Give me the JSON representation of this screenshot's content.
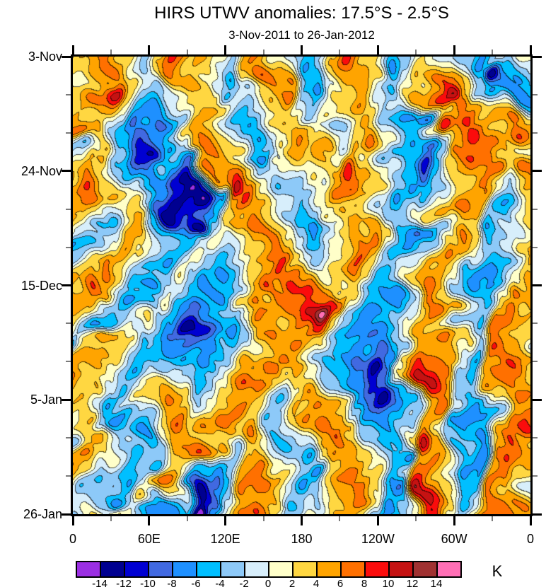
{
  "title": "HIRS UTWV anomalies: 17.5°S - 2.5°S",
  "subtitle": "3-Nov-2011 to 26-Jan-2012",
  "unit": "K",
  "chart_data": {
    "type": "heatmap",
    "title": "HIRS UTWV anomalies: 17.5°S - 2.5°S",
    "subtitle": "3-Nov-2011 to 26-Jan-2012",
    "value_units": "K",
    "grid": "off",
    "x_axis": {
      "labels": [
        "0",
        "60E",
        "120E",
        "180",
        "120W",
        "60W",
        "0"
      ],
      "range_degrees": [
        0,
        360
      ],
      "minor_ticks_between_major": 1
    },
    "y_axis": {
      "labels": [
        "3-Nov",
        "24-Nov",
        "15-Dec",
        "5-Jan",
        "26-Jan"
      ],
      "range": [
        "3-Nov-2011",
        "26-Jan-2012"
      ],
      "minor_ticks_between_major": 2
    },
    "colorbar": {
      "unit": "K",
      "position": "bottom",
      "tick_labels": [
        "-14",
        "-12",
        "-10",
        "-8",
        "-6",
        "-4",
        "-2",
        "0",
        "2",
        "4",
        "6",
        "8",
        "10",
        "12",
        "14"
      ],
      "level_step": 2,
      "colors": [
        "#9B2FE3",
        "#000090",
        "#0000D2",
        "#4169E1",
        "#1E90FF",
        "#00BFFF",
        "#8DC9F8",
        "#D7EEFB",
        "#FFFFC9",
        "#FFD741",
        "#FFA400",
        "#FF7000",
        "#FB0C0C",
        "#C51212",
        "#A03232",
        "#FF6FB5"
      ]
    },
    "field": {
      "description": "anomaly values in K on a coarse lon-time grid, estimated from filled contours",
      "cols": 27,
      "rows": 25,
      "values": [
        [
          2,
          4,
          7,
          3,
          -2,
          3,
          9,
          5,
          1,
          -3,
          5,
          6,
          1,
          -4,
          -2,
          3,
          8,
          2,
          -5,
          -1,
          2,
          1,
          -2,
          -6,
          -3,
          -2,
          1
        ],
        [
          1,
          2,
          5,
          1,
          -3,
          2,
          7,
          3,
          -1,
          -5,
          2,
          7,
          3,
          -5,
          -7,
          1,
          6,
          4,
          -6,
          -3,
          3,
          7,
          2,
          -4,
          -13,
          -6,
          -2
        ],
        [
          3,
          6,
          10,
          4,
          -1,
          -4,
          2,
          5,
          2,
          -4,
          -2,
          4,
          6,
          -2,
          -5,
          3,
          4,
          -2,
          -4,
          2,
          5,
          11,
          4,
          -2,
          -6,
          -6,
          -7
        ],
        [
          5,
          3,
          6,
          2,
          -6,
          -8,
          -3,
          3,
          6,
          2,
          -3,
          1,
          4,
          1,
          -3,
          2,
          6,
          3,
          -2,
          -5,
          -7,
          4,
          7,
          5,
          3,
          6,
          4
        ],
        [
          8,
          4,
          -2,
          -5,
          -9,
          -4,
          2,
          6,
          4,
          -2,
          -5,
          -2,
          3,
          5,
          2,
          -3,
          3,
          6,
          2,
          -4,
          2,
          9,
          6,
          8,
          4,
          7,
          6
        ],
        [
          -4,
          2,
          5,
          -3,
          -13,
          -7,
          -2,
          4,
          7,
          3,
          -4,
          -6,
          1,
          6,
          4,
          -2,
          5,
          2,
          -3,
          -6,
          -8,
          -3,
          6,
          7,
          3,
          2,
          2
        ],
        [
          2,
          6,
          3,
          -5,
          -8,
          -4,
          -6,
          -9,
          6,
          8,
          2,
          -3,
          -1,
          3,
          1,
          4,
          10,
          5,
          1,
          -4,
          -11,
          -5,
          2,
          6,
          7,
          3,
          7
        ],
        [
          5,
          8,
          4,
          -2,
          -5,
          -7,
          -10,
          -13,
          -5,
          11,
          6,
          1,
          -4,
          -2,
          2,
          6,
          8,
          3,
          -2,
          -7,
          -5,
          -1,
          4,
          7,
          3,
          -2,
          4
        ],
        [
          7,
          4,
          -1,
          3,
          -3,
          -8,
          -13,
          -9,
          -6,
          4,
          8,
          3,
          -2,
          -6,
          -3,
          2,
          5,
          -2,
          -6,
          -3,
          2,
          5,
          7,
          4,
          -3,
          -6,
          2
        ],
        [
          3,
          -2,
          -5,
          2,
          6,
          -2,
          -7,
          -13,
          -4,
          2,
          5,
          7,
          2,
          -4,
          -7,
          -2,
          3,
          6,
          2,
          -5,
          -8,
          -2,
          5,
          3,
          -5,
          -2,
          4
        ],
        [
          -7,
          -3,
          2,
          6,
          3,
          -4,
          -6,
          -3,
          2,
          -3,
          3,
          7,
          5,
          -2,
          -5,
          1,
          7,
          4,
          -3,
          -6,
          -2,
          3,
          7,
          2,
          -4,
          3,
          6
        ],
        [
          -3,
          4,
          7,
          3,
          -2,
          -6,
          -2,
          2,
          -4,
          -6,
          2,
          6,
          9,
          4,
          -2,
          4,
          7,
          2,
          -5,
          -2,
          4,
          6,
          2,
          -5,
          -7,
          -2,
          3
        ],
        [
          4,
          7,
          4,
          -3,
          -7,
          -3,
          3,
          -3,
          -7,
          -3,
          4,
          7,
          5,
          7,
          6,
          2,
          4,
          -3,
          -6,
          2,
          7,
          3,
          -3,
          -7,
          -4,
          2,
          5
        ],
        [
          6,
          3,
          -2,
          -6,
          -4,
          2,
          -4,
          -8,
          -5,
          2,
          6,
          3,
          6,
          9,
          15,
          8,
          2,
          -5,
          -8,
          -3,
          3,
          7,
          4,
          -4,
          2,
          7,
          4
        ],
        [
          2,
          -3,
          -6,
          -2,
          3,
          -3,
          -8,
          -14,
          -7,
          -4,
          3,
          7,
          4,
          6,
          8,
          3,
          -3,
          -7,
          -4,
          2,
          6,
          4,
          -2,
          -5,
          6,
          7,
          3
        ],
        [
          -5,
          2,
          5,
          2,
          -4,
          -6,
          -9,
          -9,
          -5,
          -7,
          -3,
          4,
          7,
          4,
          2,
          -2,
          -6,
          -9,
          -5,
          -2,
          5,
          7,
          3,
          -3,
          7,
          5,
          -2
        ],
        [
          3,
          6,
          2,
          -3,
          -6,
          -3,
          -5,
          -7,
          -4,
          -2,
          4,
          7,
          5,
          2,
          -3,
          -5,
          -8,
          -13,
          -7,
          3,
          7,
          4,
          -2,
          -6,
          4,
          8,
          4
        ],
        [
          6,
          4,
          -2,
          -5,
          -2,
          3,
          -2,
          -6,
          -3,
          3,
          7,
          4,
          2,
          5,
          2,
          -4,
          -7,
          -9,
          -9,
          2,
          11,
          6,
          -4,
          -3,
          6,
          7,
          2
        ],
        [
          4,
          -2,
          -6,
          -3,
          2,
          6,
          3,
          -3,
          2,
          6,
          4,
          -2,
          -4,
          2,
          6,
          2,
          -5,
          -9,
          -14,
          -5,
          4,
          7,
          -2,
          -6,
          3,
          7,
          6
        ],
        [
          2,
          5,
          -3,
          -7,
          -3,
          4,
          7,
          3,
          5,
          7,
          2,
          -5,
          -2,
          4,
          7,
          4,
          -2,
          -6,
          -8,
          -2,
          6,
          3,
          -5,
          -8,
          -2,
          6,
          8
        ],
        [
          -3,
          3,
          6,
          -2,
          -6,
          -2,
          4,
          6,
          2,
          4,
          6,
          2,
          -4,
          -2,
          4,
          7,
          3,
          -3,
          -5,
          3,
          11,
          5,
          -3,
          -6,
          4,
          7,
          4
        ],
        [
          4,
          7,
          2,
          -4,
          -2,
          -6,
          3,
          7,
          4,
          -2,
          3,
          6,
          -2,
          -5,
          2,
          6,
          4,
          2,
          -4,
          -7,
          5,
          7,
          -4,
          -7,
          6,
          8,
          5
        ],
        [
          6,
          3,
          -3,
          -6,
          -2,
          4,
          7,
          -4,
          -8,
          -4,
          5,
          7,
          3,
          -3,
          -6,
          2,
          7,
          3,
          -5,
          -3,
          8,
          4,
          -6,
          -4,
          7,
          5,
          2
        ],
        [
          2,
          -4,
          -7,
          -3,
          3,
          -2,
          4,
          -12,
          -9,
          -2,
          6,
          4,
          -2,
          -6,
          -3,
          4,
          7,
          2,
          -6,
          -8,
          11,
          3,
          -5,
          -2,
          7,
          4,
          -2
        ],
        [
          -2,
          3,
          5,
          2,
          -4,
          -7,
          -4,
          -15,
          -7,
          2,
          7,
          3,
          -4,
          -2,
          2,
          6,
          3,
          -2,
          -8,
          -4,
          7,
          2,
          -3,
          3,
          8,
          6,
          3
        ]
      ]
    }
  }
}
